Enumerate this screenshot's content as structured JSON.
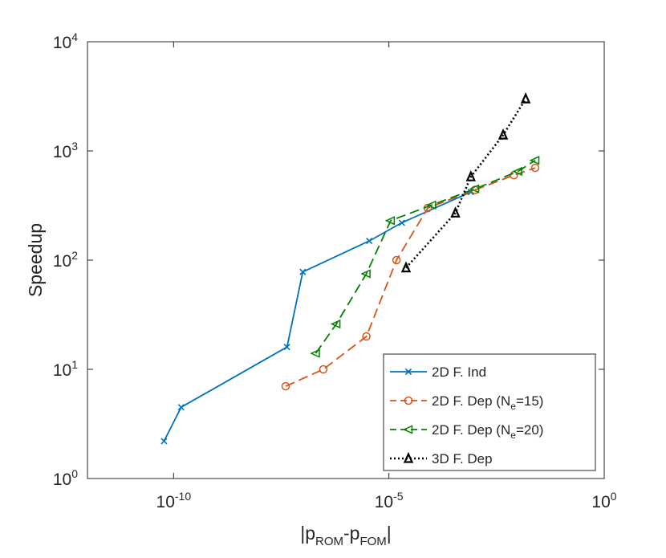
{
  "chart_data": {
    "type": "line",
    "xscale": "log",
    "yscale": "log",
    "xlabel": {
      "base": "|p",
      "sub1": "ROM",
      "mid": "-p",
      "sub2": "FOM",
      "end": "|"
    },
    "ylabel": "Speedup",
    "xlim": [
      1e-12,
      1
    ],
    "ylim": [
      1,
      10000
    ],
    "grid": false,
    "legend_position": "bottom-right",
    "x_ticks": [
      {
        "value": 1e-10,
        "base": "10",
        "exp": "-10"
      },
      {
        "value": 1e-05,
        "base": "10",
        "exp": "-5"
      },
      {
        "value": 1,
        "base": "10",
        "exp": "0"
      }
    ],
    "y_ticks": [
      {
        "value": 1,
        "base": "10",
        "exp": "0"
      },
      {
        "value": 10,
        "base": "10",
        "exp": "1"
      },
      {
        "value": 100,
        "base": "10",
        "exp": "2"
      },
      {
        "value": 1000,
        "base": "10",
        "exp": "3"
      },
      {
        "value": 10000,
        "base": "10",
        "exp": "4"
      }
    ],
    "series": [
      {
        "name": "2D F. Ind",
        "label_main": "2D F. Ind",
        "label_sub": "",
        "label_tail": "",
        "color": "#0072BD",
        "dash": "solid",
        "marker": "x",
        "x": [
          6e-11,
          1.5e-10,
          4.3e-08,
          1e-07,
          3.5e-06,
          2e-05,
          0.0008
        ],
        "y": [
          2.2,
          4.5,
          16,
          78,
          150,
          220,
          420
        ]
      },
      {
        "name": "2D F. Dep (Ne=15)",
        "label_main": "2D F. Dep (N",
        "label_sub": "e",
        "label_tail": "=15)",
        "color": "#D95319",
        "dash": "dashed",
        "marker": "circle",
        "x": [
          4e-08,
          3e-07,
          3e-06,
          1.5e-05,
          8e-05,
          0.001,
          0.008,
          0.025
        ],
        "y": [
          7,
          10,
          20,
          100,
          300,
          440,
          600,
          700
        ]
      },
      {
        "name": "2D F. Dep (Ne=20)",
        "label_main": "2D F. Dep (N",
        "label_sub": "e",
        "label_tail": "=20)",
        "color": "#008000",
        "dash": "dashed",
        "marker": "triangle-left",
        "x": [
          2e-07,
          6e-07,
          3e-06,
          1.1e-05,
          0.0001,
          0.001,
          0.01,
          0.025
        ],
        "y": [
          14,
          26,
          75,
          230,
          320,
          450,
          650,
          820
        ]
      },
      {
        "name": "3D F. Dep",
        "label_main": "3D F. Dep",
        "label_sub": "",
        "label_tail": "",
        "color": "#000000",
        "dash": "dotted",
        "marker": "triangle-up",
        "x": [
          2.5e-05,
          0.00035,
          0.0008,
          0.0045,
          0.015
        ],
        "y": [
          85,
          270,
          580,
          1400,
          3000
        ]
      }
    ]
  }
}
